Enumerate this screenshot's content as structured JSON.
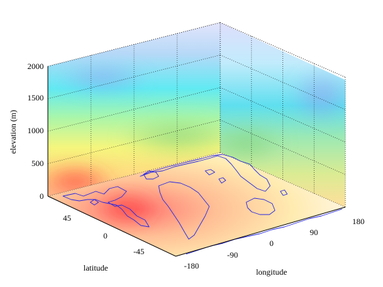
{
  "chart_data": {
    "type": "3d-volume-slices",
    "title": "",
    "xlabel": "longitude",
    "ylabel": "latitude",
    "zlabel": "elevation (m)",
    "xlim": [
      -180,
      180
    ],
    "ylim": [
      -90,
      90
    ],
    "zlim": [
      0,
      2000
    ],
    "xticks": [
      "-180",
      "-90",
      "0",
      "90",
      "180"
    ],
    "yticks": [
      "-45",
      "0",
      "45"
    ],
    "zticks": [
      "0",
      "500",
      "1000",
      "1500",
      "2000"
    ],
    "grid": true,
    "colormap": "jet",
    "base_layer": "world coastlines",
    "colors": {
      "coastline": "#2a2ae0",
      "grid": "#000000"
    }
  }
}
